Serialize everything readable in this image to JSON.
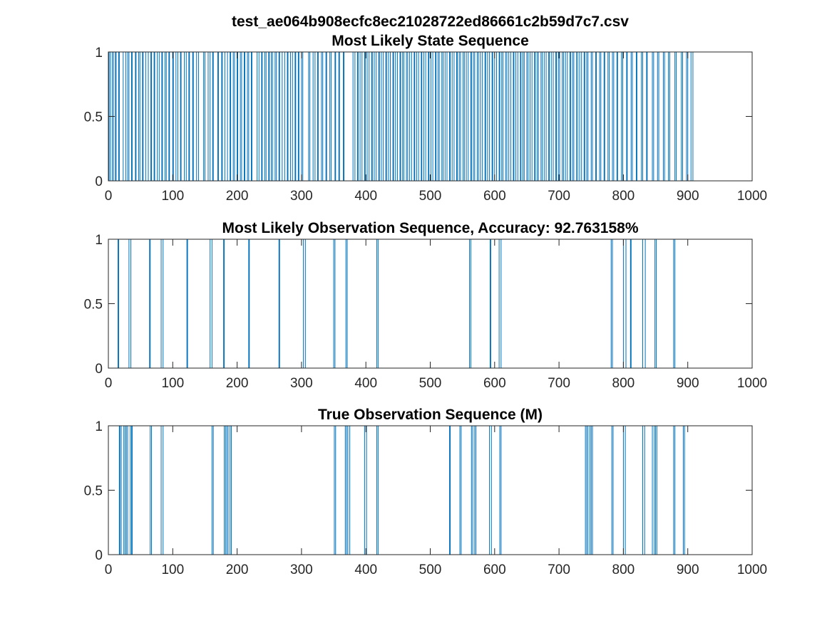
{
  "figure": {
    "title": "test_ae064b908ecfc8ec21028722ed86661c2b59d7c7.csv"
  },
  "colors": {
    "series": "#0072BD",
    "axis": "#262626",
    "background": "#ffffff"
  },
  "chart_data": [
    {
      "type": "line",
      "title": "Most Likely State Sequence",
      "xlabel": "",
      "ylabel": "",
      "xlim": [
        0,
        1000
      ],
      "ylim": [
        0,
        1
      ],
      "xticks": [
        0,
        100,
        200,
        300,
        400,
        500,
        600,
        700,
        800,
        900,
        1000
      ],
      "xtick_labels": [
        "0",
        "100",
        "200",
        "300",
        "400",
        "500",
        "600",
        "700",
        "800",
        "900",
        "1000"
      ],
      "yticks": [
        0,
        0.5,
        1
      ],
      "ytick_labels": [
        "0",
        "0.5",
        "1"
      ],
      "grid": false,
      "series": [
        {
          "x_end": 912,
          "baseline": 0,
          "note_values": "binary 0/1 sequence over x = 1..912; dense switching throughout",
          "pulses": [
            [
              1,
              3
            ],
            [
              6,
              8
            ],
            [
              11,
              12
            ],
            [
              16,
              17
            ],
            [
              23,
              27
            ],
            [
              30,
              32
            ],
            [
              36,
              37
            ],
            [
              42,
              43
            ],
            [
              47,
              49
            ],
            [
              53,
              54
            ],
            [
              58,
              62
            ],
            [
              66,
              67
            ],
            [
              71,
              72
            ],
            [
              76,
              79
            ],
            [
              83,
              84
            ],
            [
              88,
              90
            ],
            [
              94,
              95
            ],
            [
              100,
              101
            ],
            [
              105,
              108
            ],
            [
              112,
              113
            ],
            [
              118,
              121
            ],
            [
              125,
              126
            ],
            [
              131,
              132
            ],
            [
              137,
              140
            ],
            [
              148,
              150
            ],
            [
              155,
              158
            ],
            [
              162,
              163
            ],
            [
              170,
              171
            ],
            [
              176,
              177
            ],
            [
              181,
              185
            ],
            [
              189,
              190
            ],
            [
              194,
              196
            ],
            [
              200,
              201
            ],
            [
              205,
              207
            ],
            [
              211,
              212
            ],
            [
              216,
              218
            ],
            [
              222,
              223
            ],
            [
              231,
              234
            ],
            [
              238,
              239
            ],
            [
              243,
              245
            ],
            [
              249,
              250
            ],
            [
              253,
              255
            ],
            [
              259,
              261
            ],
            [
              265,
              266
            ],
            [
              270,
              274
            ],
            [
              278,
              279
            ],
            [
              283,
              286
            ],
            [
              290,
              291
            ],
            [
              295,
              296
            ],
            [
              300,
              302
            ],
            [
              311,
              313
            ],
            [
              318,
              321
            ],
            [
              325,
              326
            ],
            [
              331,
              333
            ],
            [
              338,
              339
            ],
            [
              344,
              346
            ],
            [
              352,
              353
            ],
            [
              358,
              359
            ],
            [
              365,
              366
            ],
            [
              380,
              383
            ],
            [
              387,
              388
            ],
            [
              391,
              394
            ],
            [
              398,
              399
            ],
            [
              402,
              405
            ],
            [
              409,
              410
            ],
            [
              413,
              416
            ],
            [
              420,
              421
            ],
            [
              424,
              427
            ],
            [
              431,
              432
            ],
            [
              435,
              438
            ],
            [
              442,
              443
            ],
            [
              446,
              449
            ],
            [
              453,
              454
            ],
            [
              457,
              459
            ],
            [
              463,
              465
            ],
            [
              468,
              471
            ],
            [
              475,
              476
            ],
            [
              479,
              482
            ],
            [
              486,
              487
            ],
            [
              490,
              493
            ],
            [
              497,
              498
            ],
            [
              501,
              504
            ],
            [
              508,
              509
            ],
            [
              512,
              514
            ],
            [
              518,
              520
            ],
            [
              523,
              526
            ],
            [
              530,
              531
            ],
            [
              534,
              537
            ],
            [
              541,
              542
            ],
            [
              545,
              547
            ],
            [
              551,
              553
            ],
            [
              556,
              559
            ],
            [
              563,
              564
            ],
            [
              567,
              569
            ],
            [
              573,
              575
            ],
            [
              578,
              581
            ],
            [
              585,
              586
            ],
            [
              589,
              592
            ],
            [
              596,
              597
            ],
            [
              600,
              603
            ],
            [
              607,
              608
            ],
            [
              611,
              613
            ],
            [
              617,
              619
            ],
            [
              622,
              625
            ],
            [
              629,
              630
            ],
            [
              633,
              636
            ],
            [
              640,
              641
            ],
            [
              644,
              646
            ],
            [
              650,
              652
            ],
            [
              655,
              658
            ],
            [
              662,
              663
            ],
            [
              666,
              668
            ],
            [
              672,
              674
            ],
            [
              677,
              680
            ],
            [
              684,
              685
            ],
            [
              688,
              691
            ],
            [
              695,
              696
            ],
            [
              699,
              701
            ],
            [
              705,
              707
            ],
            [
              710,
              713
            ],
            [
              717,
              718
            ],
            [
              721,
              723
            ],
            [
              727,
              729
            ],
            [
              732,
              735
            ],
            [
              739,
              740
            ],
            [
              743,
              745
            ],
            [
              750,
              752
            ],
            [
              757,
              758
            ],
            [
              763,
              765
            ],
            [
              770,
              771
            ],
            [
              776,
              778
            ],
            [
              783,
              785
            ],
            [
              790,
              791
            ],
            [
              797,
              799
            ],
            [
              805,
              806
            ],
            [
              812,
              814
            ],
            [
              820,
              821
            ],
            [
              828,
              830
            ],
            [
              836,
              837
            ],
            [
              845,
              847
            ],
            [
              853,
              855
            ],
            [
              862,
              864
            ],
            [
              870,
              872
            ],
            [
              880,
              882
            ],
            [
              890,
              892
            ],
            [
              898,
              900
            ],
            [
              905,
              908
            ]
          ]
        }
      ]
    },
    {
      "type": "line",
      "title": "Most Likely Observation Sequence, Accuracy: 92.763158%",
      "xlabel": "",
      "ylabel": "",
      "xlim": [
        0,
        1000
      ],
      "ylim": [
        0,
        1
      ],
      "xticks": [
        0,
        100,
        200,
        300,
        400,
        500,
        600,
        700,
        800,
        900,
        1000
      ],
      "xtick_labels": [
        "0",
        "100",
        "200",
        "300",
        "400",
        "500",
        "600",
        "700",
        "800",
        "900",
        "1000"
      ],
      "yticks": [
        0,
        0.5,
        1
      ],
      "ytick_labels": [
        "0",
        "0.5",
        "1"
      ],
      "grid": false,
      "series": [
        {
          "x_end": 912,
          "baseline": 0,
          "pulses": [
            [
              15,
              16
            ],
            [
              32,
              35
            ],
            [
              64,
              65
            ],
            [
              82,
              85
            ],
            [
              122,
              123
            ],
            [
              158,
              161
            ],
            [
              179,
              180
            ],
            [
              218,
              219
            ],
            [
              265,
              266
            ],
            [
              303,
              306
            ],
            [
              350,
              352
            ],
            [
              369,
              371
            ],
            [
              417,
              419
            ],
            [
              561,
              563
            ],
            [
              593,
              594
            ],
            [
              607,
              610
            ],
            [
              781,
              783
            ],
            [
              800,
              804
            ],
            [
              811,
              812
            ],
            [
              830,
              834
            ],
            [
              849,
              851
            ],
            [
              878,
              880
            ]
          ]
        }
      ]
    },
    {
      "type": "line",
      "title": "True Observation Sequence (M)",
      "xlabel": "",
      "ylabel": "",
      "xlim": [
        0,
        1000
      ],
      "ylim": [
        0,
        1
      ],
      "xticks": [
        0,
        100,
        200,
        300,
        400,
        500,
        600,
        700,
        800,
        900,
        1000
      ],
      "xtick_labels": [
        "0",
        "100",
        "200",
        "300",
        "400",
        "500",
        "600",
        "700",
        "800",
        "900",
        "1000"
      ],
      "yticks": [
        0,
        0.5,
        1
      ],
      "ytick_labels": [
        "0",
        "0.5",
        "1"
      ],
      "grid": false,
      "series": [
        {
          "x_end": 912,
          "baseline": 0,
          "pulses": [
            [
              17,
              18
            ],
            [
              20,
              24
            ],
            [
              26,
              28
            ],
            [
              30,
              34
            ],
            [
              36,
              37
            ],
            [
              65,
              67
            ],
            [
              82,
              85
            ],
            [
              161,
              163
            ],
            [
              180,
              182
            ],
            [
              184,
              186
            ],
            [
              189,
              191
            ],
            [
              351,
              353
            ],
            [
              368,
              370
            ],
            [
              372,
              375
            ],
            [
              398,
              401
            ],
            [
              417,
              419
            ],
            [
              530,
              531
            ],
            [
              546,
              548
            ],
            [
              564,
              566
            ],
            [
              569,
              571
            ],
            [
              592,
              595
            ],
            [
              608,
              610
            ],
            [
              741,
              743
            ],
            [
              745,
              748
            ],
            [
              750,
              752
            ],
            [
              782,
              784
            ],
            [
              800,
              803
            ],
            [
              830,
              833
            ],
            [
              845,
              848
            ],
            [
              850,
              852
            ],
            [
              878,
              880
            ],
            [
              893,
              895
            ]
          ]
        }
      ]
    }
  ]
}
